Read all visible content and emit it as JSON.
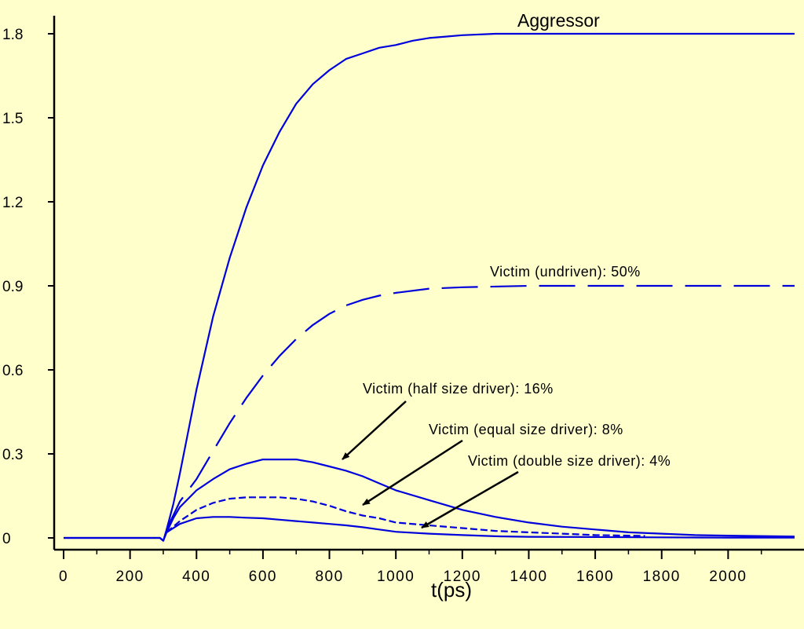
{
  "colors": {
    "background": "#FFFFCC",
    "series": "#0000DD",
    "axis": "#000000"
  },
  "chart_data": {
    "type": "line",
    "title": "",
    "xlabel": "t(ps)",
    "ylabel": "",
    "xlim": [
      0,
      2200
    ],
    "ylim": [
      0,
      1.8
    ],
    "xticks": [
      0,
      200,
      400,
      600,
      800,
      1000,
      1200,
      1400,
      1600,
      1800,
      2000
    ],
    "yticks": [
      0,
      0.3,
      0.6,
      0.9,
      1.2,
      1.5,
      1.8
    ],
    "ytick_labels": [
      "0",
      "0.3",
      "0.6",
      "0.9",
      "1.2",
      "1.5",
      "1.8"
    ],
    "grid": false,
    "series": [
      {
        "name": "Aggressor",
        "style": "solid",
        "x": [
          0,
          290,
          300,
          310,
          330,
          350,
          370,
          400,
          450,
          500,
          550,
          600,
          650,
          700,
          750,
          800,
          850,
          900,
          950,
          1000,
          1050,
          1100,
          1150,
          1200,
          1300,
          1400,
          1600,
          1800,
          2000,
          2200
        ],
        "y": [
          0,
          0,
          -0.01,
          0.03,
          0.12,
          0.23,
          0.35,
          0.53,
          0.79,
          1.0,
          1.18,
          1.33,
          1.45,
          1.55,
          1.62,
          1.67,
          1.71,
          1.73,
          1.75,
          1.76,
          1.775,
          1.785,
          1.79,
          1.795,
          1.8,
          1.8,
          1.8,
          1.8,
          1.8,
          1.8
        ]
      },
      {
        "name": "Victim (undriven): 50%",
        "style": "long-dash",
        "x": [
          310,
          350,
          400,
          450,
          500,
          550,
          600,
          650,
          700,
          750,
          800,
          850,
          900,
          950,
          1000,
          1100,
          1200,
          1400,
          1600,
          1800,
          2000,
          2200
        ],
        "y": [
          0.03,
          0.13,
          0.21,
          0.31,
          0.41,
          0.5,
          0.58,
          0.65,
          0.71,
          0.76,
          0.8,
          0.83,
          0.85,
          0.865,
          0.875,
          0.89,
          0.895,
          0.9,
          0.9,
          0.9,
          0.9,
          0.9
        ]
      },
      {
        "name": "Victim (half size driver): 16%",
        "style": "solid",
        "x": [
          0,
          290,
          300,
          310,
          330,
          350,
          400,
          450,
          500,
          550,
          600,
          650,
          700,
          750,
          800,
          850,
          900,
          950,
          1000,
          1100,
          1200,
          1300,
          1400,
          1500,
          1600,
          1700,
          1800,
          1900,
          2000,
          2200
        ],
        "y": [
          0,
          0,
          -0.01,
          0.02,
          0.07,
          0.11,
          0.17,
          0.21,
          0.245,
          0.265,
          0.28,
          0.28,
          0.28,
          0.27,
          0.255,
          0.24,
          0.22,
          0.195,
          0.17,
          0.135,
          0.1,
          0.075,
          0.055,
          0.04,
          0.03,
          0.02,
          0.015,
          0.01,
          0.008,
          0.005
        ]
      },
      {
        "name": "Victim (equal size driver): 8%",
        "style": "short-dash",
        "x": [
          310,
          350,
          400,
          450,
          500,
          550,
          600,
          650,
          700,
          750,
          800,
          850,
          900,
          950,
          1000,
          1100,
          1200,
          1300,
          1400,
          1500,
          1600,
          1700,
          1750
        ],
        "y": [
          0.02,
          0.06,
          0.1,
          0.125,
          0.14,
          0.145,
          0.145,
          0.145,
          0.14,
          0.13,
          0.115,
          0.095,
          0.08,
          0.07,
          0.055,
          0.045,
          0.035,
          0.025,
          0.02,
          0.015,
          0.01,
          0.008,
          0.007
        ]
      },
      {
        "name": "Victim (double size driver): 4%",
        "style": "solid",
        "x": [
          310,
          350,
          400,
          450,
          500,
          550,
          600,
          650,
          700,
          750,
          800,
          850,
          900,
          950,
          1000,
          1100,
          1200,
          1300,
          1400,
          1600,
          1800,
          2000,
          2200
        ],
        "y": [
          0.02,
          0.05,
          0.07,
          0.075,
          0.075,
          0.072,
          0.07,
          0.065,
          0.06,
          0.055,
          0.05,
          0.045,
          0.038,
          0.03,
          0.022,
          0.015,
          0.01,
          0.006,
          0.004,
          0.003,
          0.002,
          0.001,
          0.001
        ]
      }
    ],
    "annotations": {
      "aggressor": {
        "text": "Aggressor"
      },
      "undriven": {
        "text": "Victim  (undriven):  50%"
      },
      "half": {
        "text": "Victim  (half  size  driver):  16%",
        "arrow_to": [
          740,
          0.28
        ]
      },
      "equal": {
        "text": "Victim  (equal  size  driver):  8%",
        "arrow_to": [
          800,
          0.12
        ]
      },
      "double": {
        "text": "Victim  (double  size  driver):  4%",
        "arrow_to": [
          960,
          0.05
        ]
      }
    }
  }
}
